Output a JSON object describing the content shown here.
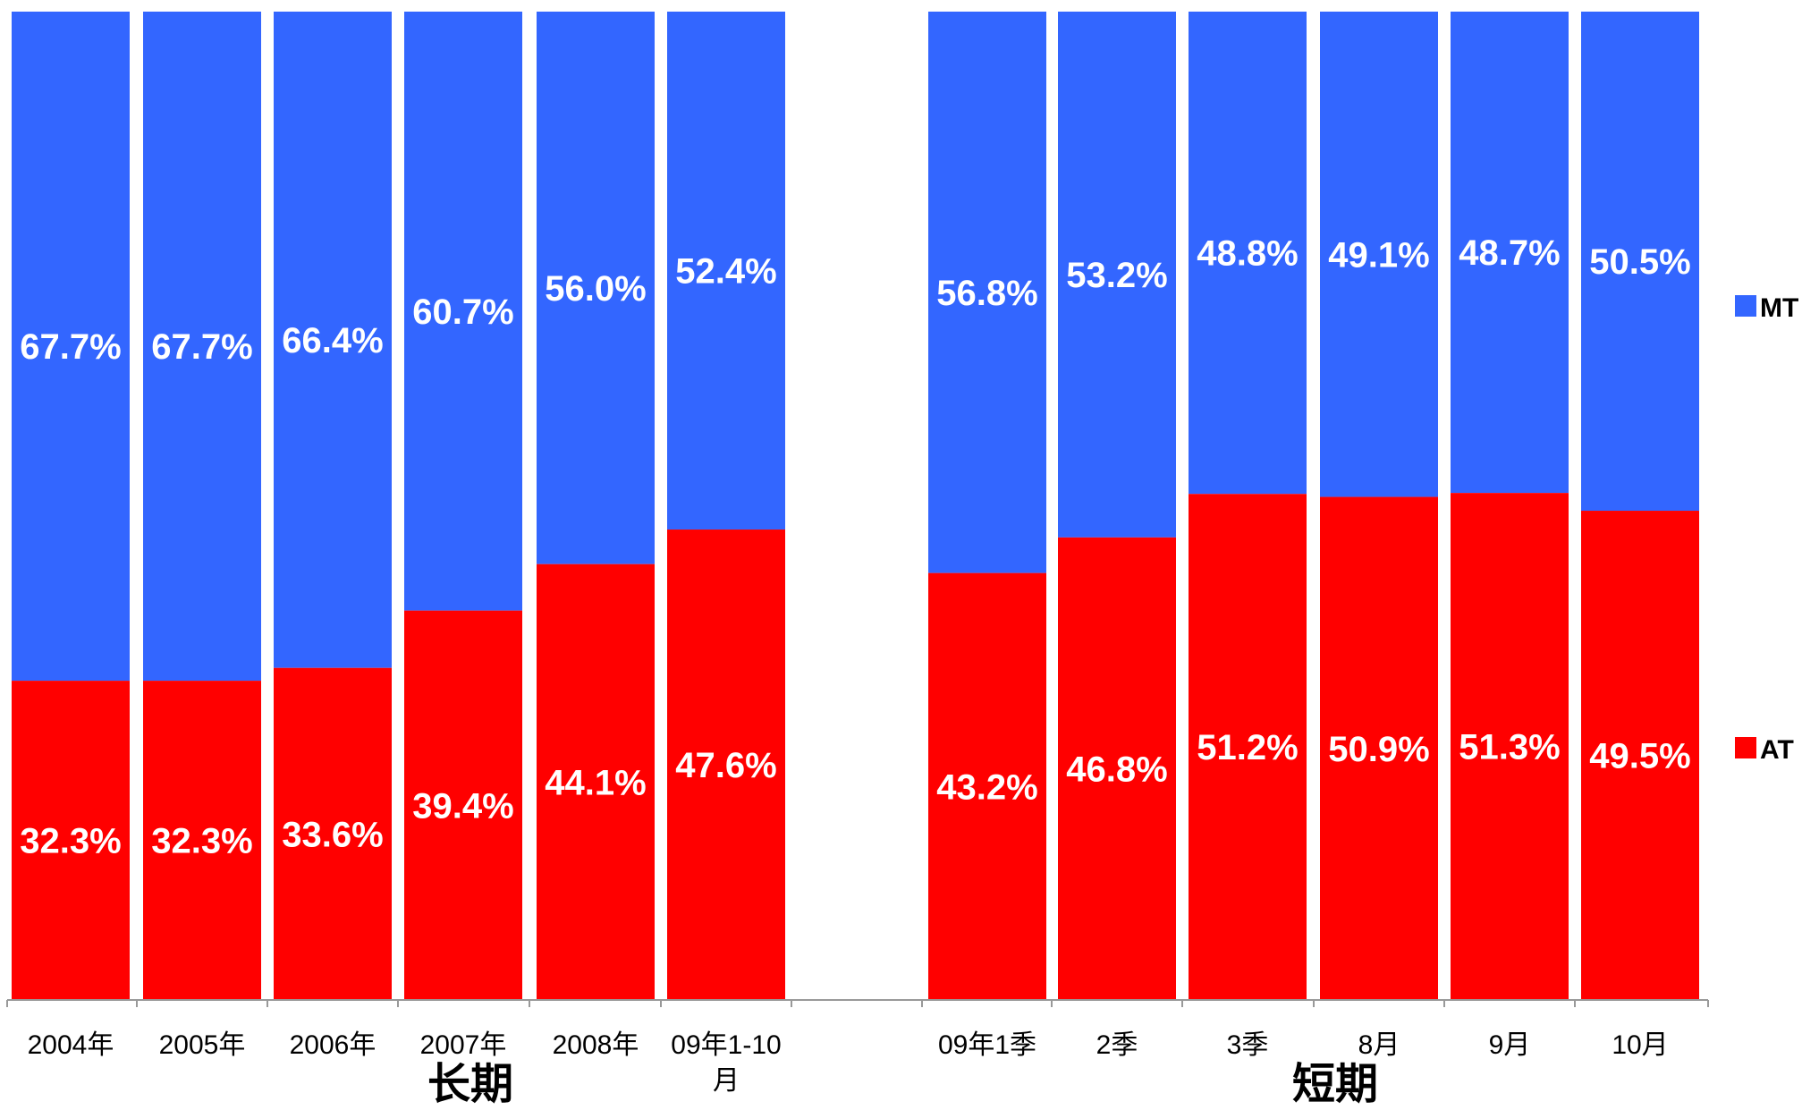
{
  "chart_data": {
    "type": "bar",
    "stacked": true,
    "normalized": true,
    "unit": "%",
    "ylim": [
      0,
      100
    ],
    "grid": false,
    "legend_position": "right",
    "groups": [
      {
        "label": "长期",
        "categories": [
          "2004年",
          "2005年",
          "2006年",
          "2007年",
          "2008年",
          "09年1-10月"
        ]
      },
      {
        "label": "短期",
        "categories": [
          "09年1季",
          "2季",
          "3季",
          "8月",
          "9月",
          "10月"
        ]
      }
    ],
    "categories": [
      "2004年",
      "2005年",
      "2006年",
      "2007年",
      "2008年",
      "09年1-10月",
      "09年1季",
      "2季",
      "3季",
      "8月",
      "9月",
      "10月"
    ],
    "series": [
      {
        "name": "AT",
        "color": "#ff0000",
        "values": [
          32.3,
          32.3,
          33.6,
          39.4,
          44.1,
          47.6,
          43.2,
          46.8,
          51.2,
          50.9,
          51.3,
          49.5
        ],
        "labels": [
          "32.3%",
          "32.3%",
          "33.6%",
          "39.4%",
          "44.1%",
          "47.6%",
          "43.2%",
          "46.8%",
          "51.2%",
          "50.9%",
          "51.3%",
          "49.5%"
        ]
      },
      {
        "name": "MT",
        "color": "#3366ff",
        "values": [
          67.7,
          67.7,
          66.4,
          60.7,
          56.0,
          52.4,
          56.8,
          53.2,
          48.8,
          49.1,
          48.7,
          50.5
        ],
        "labels": [
          "67.7%",
          "67.7%",
          "66.4%",
          "60.7%",
          "56.0%",
          "52.4%",
          "56.8%",
          "53.2%",
          "48.8%",
          "49.1%",
          "48.7%",
          "50.5%"
        ]
      }
    ],
    "legend": [
      "MT",
      "AT"
    ]
  }
}
